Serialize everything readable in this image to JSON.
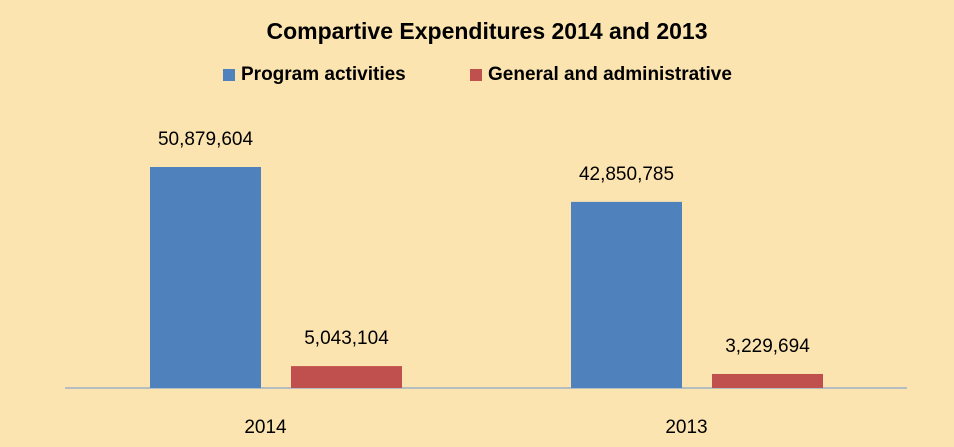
{
  "chart_data": {
    "type": "bar",
    "title": "Compartive Expenditures 2014 and 2013",
    "categories": [
      "2014",
      "2013"
    ],
    "series": [
      {
        "name": "Program activities",
        "color": "#4f81bd",
        "values": [
          50879604,
          42850785
        ],
        "value_labels": [
          "50,879,604",
          "42,850,785"
        ]
      },
      {
        "name": "General and administrative",
        "color": "#c0504d",
        "values": [
          5043104,
          3229694
        ],
        "value_labels": [
          "5,043,104",
          "3,229,694"
        ]
      }
    ],
    "legend": "top"
  }
}
